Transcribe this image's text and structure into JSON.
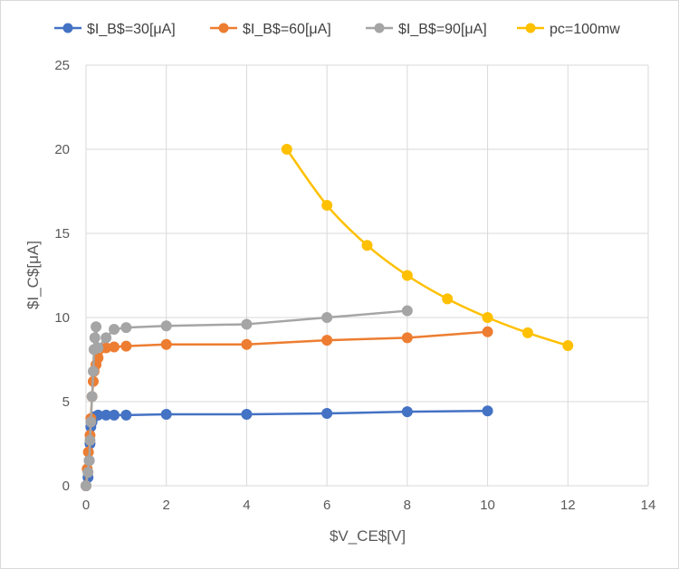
{
  "chart_data": {
    "type": "scatter",
    "title": "",
    "xlabel": "$V_CE$[V]",
    "ylabel": "$I_C$[μA]",
    "xlim": [
      0,
      14
    ],
    "ylim": [
      0,
      25
    ],
    "xticks": [
      0,
      2,
      4,
      6,
      8,
      10,
      12,
      14
    ],
    "yticks": [
      0,
      5,
      10,
      15,
      20,
      25
    ],
    "grid": true,
    "legend_position": "top",
    "series": [
      {
        "name": "$I_B$=30[μA]",
        "color": "#4472c4",
        "x": [
          0,
          0.05,
          0.08,
          0.1,
          0.12,
          0.15,
          0.2,
          0.3,
          0.5,
          0.7,
          1,
          2,
          4,
          6,
          8,
          10
        ],
        "y": [
          0,
          0.5,
          1.5,
          2.5,
          3.5,
          3.8,
          4.1,
          4.2,
          4.2,
          4.2,
          4.2,
          4.25,
          4.25,
          4.3,
          4.4,
          4.45
        ]
      },
      {
        "name": "$I_B$=60[μA]",
        "color": "#ed7d31",
        "x": [
          0,
          0.03,
          0.06,
          0.1,
          0.12,
          0.15,
          0.18,
          0.2,
          0.25,
          0.3,
          0.5,
          0.7,
          1,
          2,
          4,
          6,
          8,
          10
        ],
        "y": [
          0,
          1,
          2,
          3,
          4,
          5.3,
          6.2,
          6.8,
          7.2,
          7.6,
          8.2,
          8.25,
          8.3,
          8.4,
          8.4,
          8.65,
          8.8,
          9.15
        ]
      },
      {
        "name": "$I_B$=90[μA]",
        "color": "#a5a5a5",
        "x": [
          0,
          0.05,
          0.08,
          0.1,
          0.12,
          0.15,
          0.18,
          0.2,
          0.22,
          0.25,
          0.3,
          0.5,
          0.7,
          1,
          2,
          4,
          6,
          8
        ],
        "y": [
          0,
          0.8,
          1.5,
          2.7,
          3.8,
          5.3,
          6.8,
          8.1,
          8.8,
          9.45,
          8.2,
          8.8,
          9.3,
          9.4,
          9.5,
          9.6,
          10,
          10.4
        ]
      },
      {
        "name": "pc=100mw",
        "color": "#ffc000",
        "x": [
          5,
          6,
          7,
          8,
          9,
          10,
          11,
          12
        ],
        "y": [
          20,
          16.67,
          14.29,
          12.5,
          11.11,
          10,
          9.09,
          8.33
        ]
      }
    ]
  }
}
